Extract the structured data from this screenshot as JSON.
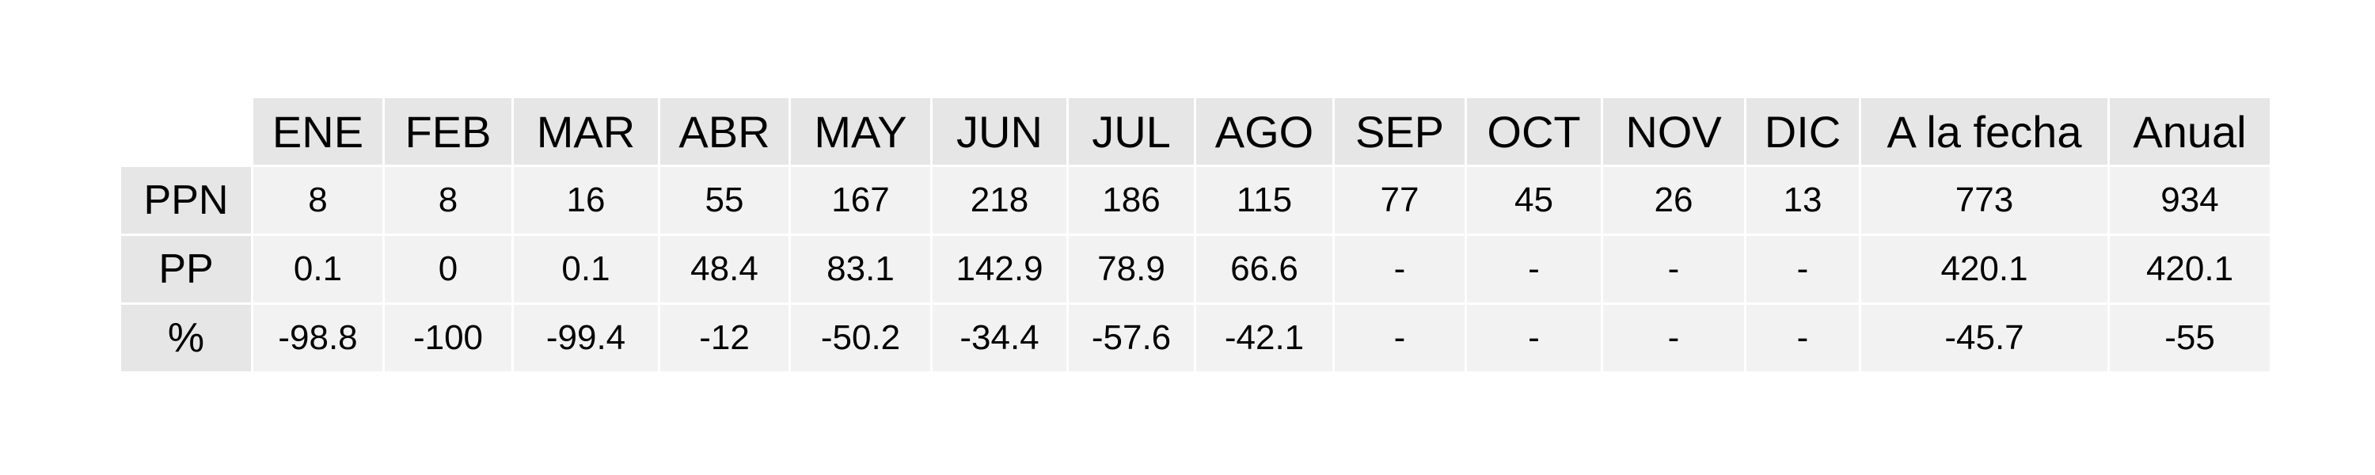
{
  "chart_data": {
    "type": "table",
    "columns": [
      "ENE",
      "FEB",
      "MAR",
      "ABR",
      "MAY",
      "JUN",
      "JUL",
      "AGO",
      "SEP",
      "OCT",
      "NOV",
      "DIC",
      "A la fecha",
      "Anual"
    ],
    "rows": [
      {
        "label": "PPN",
        "values": [
          "8",
          "8",
          "16",
          "55",
          "167",
          "218",
          "186",
          "115",
          "77",
          "45",
          "26",
          "13",
          "773",
          "934"
        ]
      },
      {
        "label": "PP",
        "values": [
          "0.1",
          "0",
          "0.1",
          "48.4",
          "83.1",
          "142.9",
          "78.9",
          "66.6",
          "-",
          "-",
          "-",
          "-",
          "420.1",
          "420.1"
        ]
      },
      {
        "label": "%",
        "values": [
          "-98.8",
          "-100",
          "-99.4",
          "-12",
          "-50.2",
          "-34.4",
          "-57.6",
          "-42.1",
          "-",
          "-",
          "-",
          "-",
          "-45.7",
          "-55"
        ]
      }
    ]
  }
}
